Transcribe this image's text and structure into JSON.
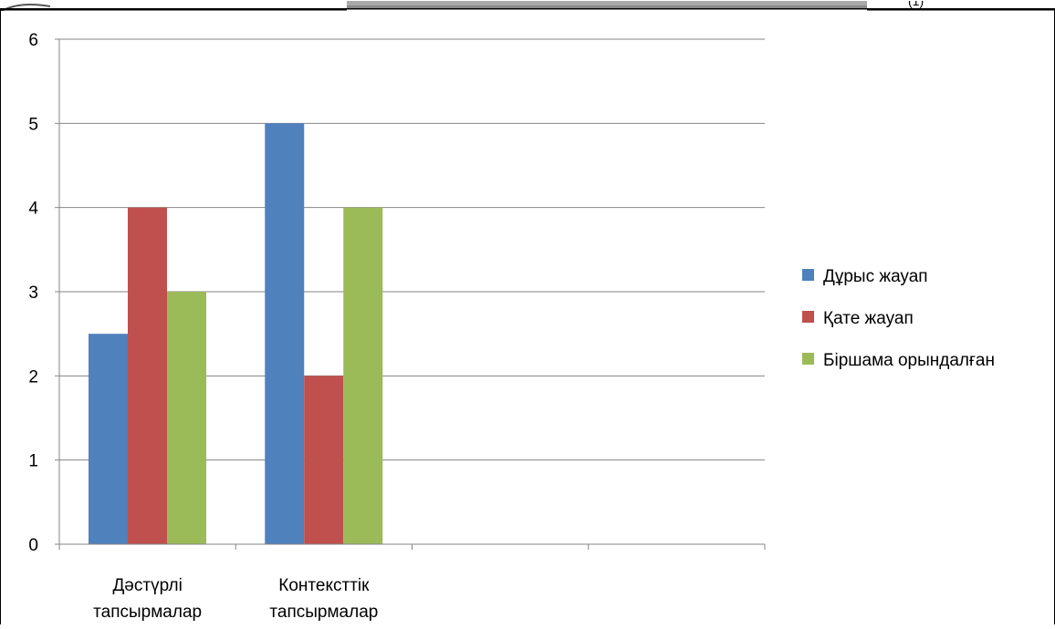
{
  "header_fragment": {
    "text": "(1)"
  },
  "chart_data": {
    "type": "bar",
    "categories": [
      [
        "Дәстүрлі",
        "тапсырмалар"
      ],
      [
        "Контексттік",
        "тапсырмалар"
      ],
      [
        "",
        ""
      ],
      [
        "",
        ""
      ]
    ],
    "series": [
      {
        "name": "Дұрыс жауап",
        "values": [
          2.5,
          5,
          null,
          null
        ],
        "color": "#4F81BD"
      },
      {
        "name": "Қате жауап",
        "values": [
          4,
          2,
          null,
          null
        ],
        "color": "#C0504D"
      },
      {
        "name": "Біршама орындалған",
        "values": [
          3,
          4,
          null,
          null
        ],
        "color": "#9BBB59"
      }
    ],
    "y_ticks": [
      "0",
      "1",
      "2",
      "3",
      "4",
      "5",
      "6"
    ],
    "ylim": [
      0,
      6
    ],
    "title": "",
    "xlabel": "",
    "ylabel": "",
    "grid": true,
    "legend_position": "right"
  }
}
